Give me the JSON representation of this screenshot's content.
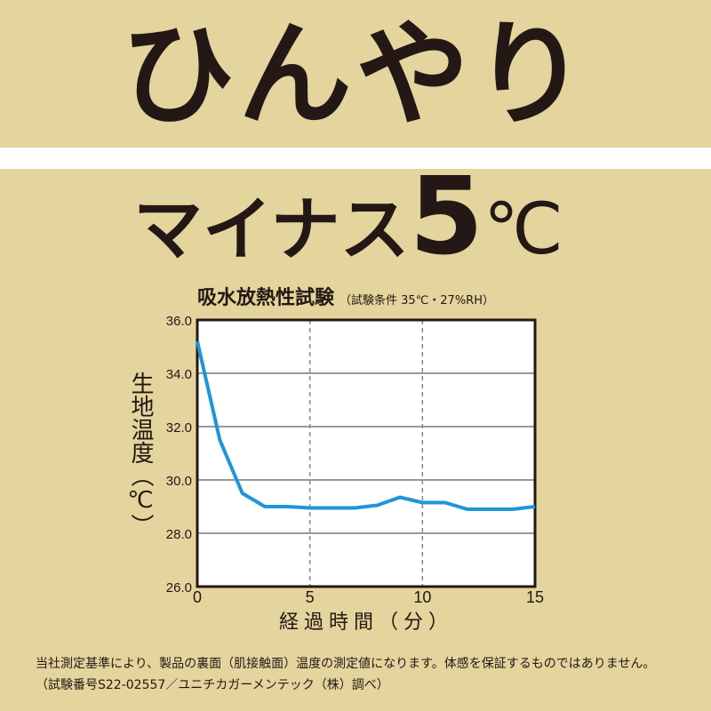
{
  "headline": {
    "line1": "ひんやり",
    "line2_text": "マイナス",
    "line2_number": "5",
    "line2_unit": "℃"
  },
  "chart_data": {
    "type": "line",
    "title": "吸水放熱性試験",
    "subtitle": "（試験条件 35℃・27%RH）",
    "xlabel": "経過時間（分）",
    "ylabel": "生地温度（℃）",
    "xlim": [
      0,
      15
    ],
    "ylim": [
      26.0,
      36.0
    ],
    "x_ticks": [
      "0",
      "5",
      "10",
      "15"
    ],
    "y_ticks": [
      "26.0",
      "28.0",
      "30.0",
      "32.0",
      "34.0",
      "36.0"
    ],
    "grid": {
      "horizontal": "solid",
      "vertical": "dashed"
    },
    "line_color": "#1e96d8",
    "x": [
      0,
      1,
      2,
      3,
      4,
      5,
      6,
      7,
      8,
      9,
      10,
      11,
      12,
      13,
      14,
      15
    ],
    "values": [
      35.2,
      31.5,
      29.5,
      29.0,
      29.0,
      28.95,
      28.95,
      28.95,
      29.05,
      29.35,
      29.15,
      29.15,
      28.9,
      28.9,
      28.9,
      29.0
    ]
  },
  "footnote": {
    "line1": "当社測定基準により、製品の裏面（肌接触面）温度の測定値になります。体感を保証するものではありません。",
    "line2": "（試験番号S22-02557／ユニチカガーメンテック（株）調べ）"
  }
}
